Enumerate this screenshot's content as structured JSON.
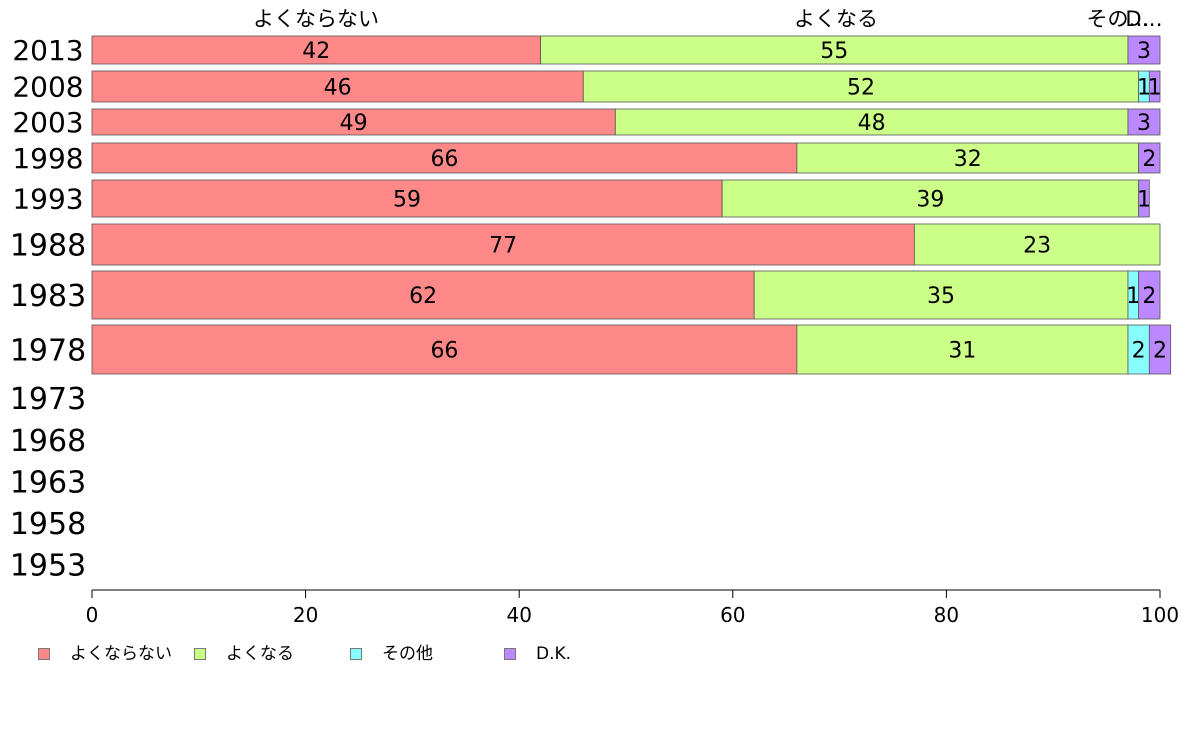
{
  "chart_data": {
    "type": "bar",
    "orientation": "horizontal",
    "stacked": true,
    "categories": [
      "1953",
      "1958",
      "1963",
      "1968",
      "1973",
      "1978",
      "1983",
      "1988",
      "1993",
      "1998",
      "2003",
      "2008",
      "2013"
    ],
    "series": [
      {
        "name": "よくならない",
        "color": "#ff8888",
        "values": [
          null,
          null,
          null,
          null,
          null,
          66,
          62,
          77,
          59,
          66,
          49,
          46,
          42
        ]
      },
      {
        "name": "よくなる",
        "color": "#ccff88",
        "values": [
          null,
          null,
          null,
          null,
          null,
          31,
          35,
          23,
          39,
          32,
          48,
          52,
          55
        ]
      },
      {
        "name": "その他",
        "color": "#88ffff",
        "values": [
          null,
          null,
          null,
          null,
          null,
          2,
          1,
          null,
          null,
          null,
          null,
          1,
          null
        ]
      },
      {
        "name": "D.K.",
        "color": "#bb88ff",
        "values": [
          null,
          null,
          null,
          null,
          null,
          2,
          2,
          null,
          1,
          2,
          3,
          1,
          3
        ]
      }
    ],
    "top_labels": [
      "よくならない",
      "よくなる",
      "その…",
      "D…"
    ],
    "x_ticks": [
      "0",
      "20",
      "40",
      "60",
      "80",
      "100"
    ],
    "xlim": [
      0,
      100
    ],
    "grid": false,
    "legend_position": "bottom-left"
  },
  "legend": {
    "items": [
      "よくならない",
      "よくなる",
      "その他",
      "D.K."
    ]
  }
}
